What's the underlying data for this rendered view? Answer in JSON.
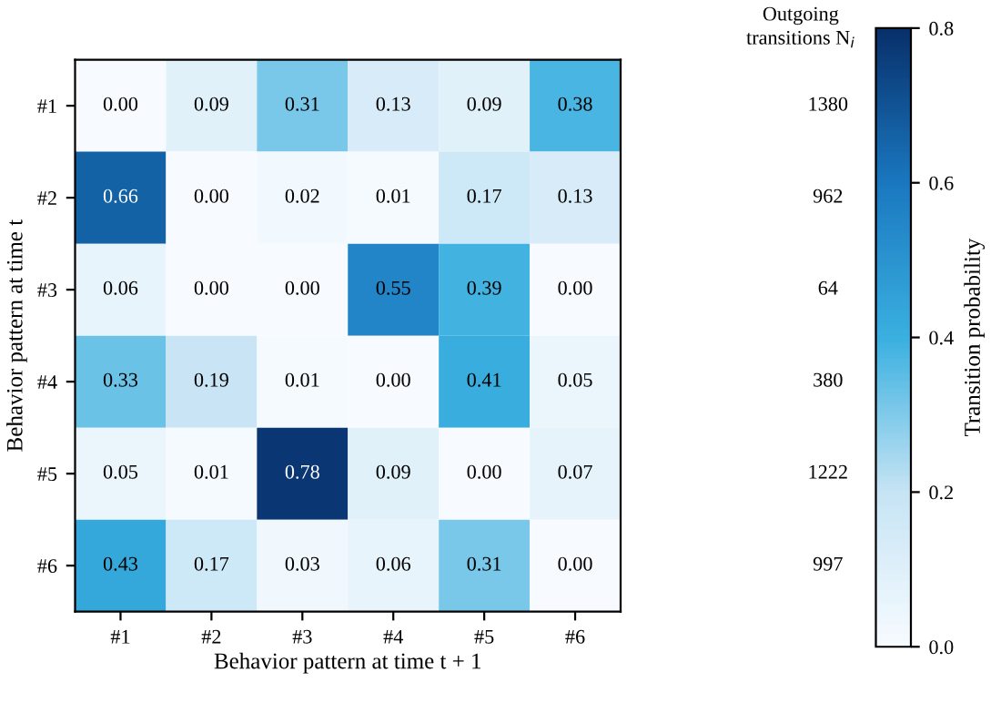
{
  "chart_data": {
    "type": "heatmap",
    "xlabel": "Behavior pattern at time t + 1",
    "ylabel": "Behavior pattern at time t",
    "annotations": [
      "Outgoing\ntransitions N$_{i}$"
    ],
    "clabel": "Transition probability",
    "categories": [
      "#1",
      "#2",
      "#3",
      "#4",
      "#5",
      "#6"
    ],
    "y_categories": [
      "#1",
      "#2",
      "#3",
      "#4",
      "#5",
      "#6"
    ],
    "y2_categories": [
      "1380",
      "962",
      "64",
      "380",
      "1222",
      "997"
    ],
    "cells": [
      [
        0.0,
        0.09,
        0.31,
        0.13,
        0.09,
        0.38
      ],
      [
        0.66,
        0.0,
        0.02,
        0.01,
        0.17,
        0.13
      ],
      [
        0.06,
        0.0,
        0.0,
        0.55,
        0.39,
        0.0
      ],
      [
        0.33,
        0.19,
        0.01,
        0.0,
        0.41,
        0.05
      ],
      [
        0.05,
        0.01,
        0.78,
        0.09,
        0.0,
        0.07
      ],
      [
        0.43,
        0.17,
        0.03,
        0.06,
        0.31,
        0.0
      ]
    ],
    "cell_labels": [
      [
        "0.00",
        "0.09",
        "0.31",
        "0.13",
        "0.09",
        "0.38"
      ],
      [
        "0.66",
        "0.00",
        "0.02",
        "0.01",
        "0.17",
        "0.13"
      ],
      [
        "0.06",
        "0.00",
        "0.00",
        "0.55",
        "0.39",
        "0.00"
      ],
      [
        "0.33",
        "0.19",
        "0.01",
        "0.00",
        "0.41",
        "0.05"
      ],
      [
        "0.05",
        "0.01",
        "0.78",
        "0.09",
        "0.00",
        "0.07"
      ],
      [
        "0.43",
        "0.17",
        "0.03",
        "0.06",
        "0.31",
        "0.00"
      ]
    ],
    "clim": [
      0,
      0.8
    ],
    "cticks": [
      {
        "value": 0,
        "label": "0.0"
      },
      {
        "value": 0.2,
        "label": "0.2"
      },
      {
        "value": 0.4,
        "label": "0.4"
      },
      {
        "value": 0.6,
        "label": "0.6"
      },
      {
        "value": 0.8,
        "label": "0.8"
      }
    ]
  }
}
